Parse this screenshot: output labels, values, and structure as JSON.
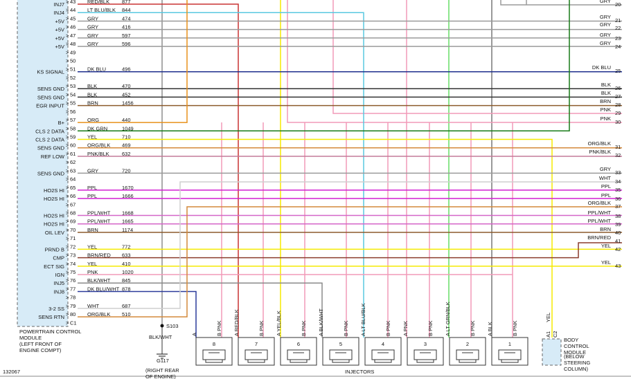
{
  "pcm": {
    "label": "POWERTRAIN CONTROL MODULE",
    "location": "(LEFT FRONT OF ENGINE COMPT)",
    "pins": [
      {
        "pin": 43,
        "wire": "RED/BLK",
        "circuit": 877,
        "function": "INJ7"
      },
      {
        "pin": 44,
        "wire": "LT BLU/BLK",
        "circuit": 844,
        "function": "INJ4"
      },
      {
        "pin": 45,
        "wire": "GRY",
        "circuit": 474,
        "function": "+5V"
      },
      {
        "pin": 46,
        "wire": "GRY",
        "circuit": 416,
        "function": "+5V"
      },
      {
        "pin": 47,
        "wire": "GRY",
        "circuit": 597,
        "function": "+5V"
      },
      {
        "pin": 48,
        "wire": "GRY",
        "circuit": 596,
        "function": "+5V"
      },
      {
        "pin": 49
      },
      {
        "pin": 50
      },
      {
        "pin": 51,
        "wire": "DK BLU",
        "circuit": 496,
        "function": "KS SIGNAL"
      },
      {
        "pin": 52
      },
      {
        "pin": 53,
        "wire": "BLK",
        "circuit": 470,
        "function": "SENS GND"
      },
      {
        "pin": 54,
        "wire": "BLK",
        "circuit": 452,
        "function": "SENS GND"
      },
      {
        "pin": 55,
        "wire": "BRN",
        "circuit": 1456,
        "function": "EGR INPUT"
      },
      {
        "pin": 56
      },
      {
        "pin": 57,
        "wire": "ORG",
        "circuit": 440,
        "function": "B+"
      },
      {
        "pin": 58,
        "wire": "DK GRN",
        "circuit": 1049,
        "function": "CLS 2 DATA"
      },
      {
        "pin": 59,
        "wire": "YEL",
        "circuit": 710,
        "function": "CLS 2 DATA"
      },
      {
        "pin": 60,
        "wire": "ORG/BLK",
        "circuit": 469,
        "function": "SENS GND"
      },
      {
        "pin": 61,
        "wire": "PNK/BLK",
        "circuit": 632,
        "function": "REF LOW"
      },
      {
        "pin": 62
      },
      {
        "pin": 63,
        "wire": "GRY",
        "circuit": 720,
        "function": "SENS GND"
      },
      {
        "pin": 64
      },
      {
        "pin": 65,
        "wire": "PPL",
        "circuit": 1670,
        "function": "HO2S HI"
      },
      {
        "pin": 66,
        "wire": "PPL",
        "circuit": 1666,
        "function": "HO2S HI"
      },
      {
        "pin": 67
      },
      {
        "pin": 68,
        "wire": "PPL/WHT",
        "circuit": 1668,
        "function": "HO2S HI"
      },
      {
        "pin": 69,
        "wire": "PPL/WHT",
        "circuit": 1665,
        "function": "HO2S HI"
      },
      {
        "pin": 70,
        "wire": "BRN",
        "circuit": 1174,
        "function": "OIL LEV"
      },
      {
        "pin": 71
      },
      {
        "pin": 72,
        "wire": "YEL",
        "circuit": 772,
        "function": "PRND B"
      },
      {
        "pin": 73,
        "wire": "BRN/RED",
        "circuit": 633,
        "function": "CMP"
      },
      {
        "pin": 74,
        "wire": "YEL",
        "circuit": 410,
        "function": "ECT SIG"
      },
      {
        "pin": 75,
        "wire": "PNK",
        "circuit": 1020,
        "function": "IGN"
      },
      {
        "pin": 76,
        "wire": "BLK/WHT",
        "circuit": 845,
        "function": "INJ5"
      },
      {
        "pin": 77,
        "wire": "DK BLU/WHT",
        "circuit": 878,
        "function": "INJ8"
      },
      {
        "pin": 78
      },
      {
        "pin": 79,
        "wire": "WHT",
        "circuit": 687,
        "function": "3-2 SS"
      },
      {
        "pin": 80,
        "wire": "ORG/BLK",
        "circuit": 510,
        "function": "SENS RTN"
      },
      {
        "pin": "C1"
      }
    ]
  },
  "right_connector": [
    {
      "wire": "GRY",
      "pin": 20
    },
    {
      "wire": "GRY",
      "pin": 21
    },
    {
      "wire": "GRY",
      "pin": 22
    },
    {
      "wire": "GRY",
      "pin": 23
    },
    {
      "wire": "GRY",
      "pin": 24
    },
    {
      "wire": "DK BLU",
      "pin": 25
    },
    {
      "wire": "BLK",
      "pin": 26
    },
    {
      "wire": "BLK",
      "pin": 27
    },
    {
      "wire": "BRN",
      "pin": 28
    },
    {
      "wire": "PNK",
      "pin": 29
    },
    {
      "wire": "PNK",
      "pin": 30
    },
    {
      "wire": "ORG/BLK",
      "pin": 31
    },
    {
      "wire": "PNK/BLK",
      "pin": 32
    },
    {
      "wire": "GRY",
      "pin": 33
    },
    {
      "wire": "WHT",
      "pin": 34
    },
    {
      "wire": "PPL",
      "pin": 35
    },
    {
      "wire": "PPL",
      "pin": 36
    },
    {
      "wire": "ORG/BLK",
      "pin": 37
    },
    {
      "wire": "PPL/WHT",
      "pin": 38
    },
    {
      "wire": "PPL/WHT",
      "pin": 39
    },
    {
      "wire": "BRN",
      "pin": 40
    },
    {
      "wire": "BRN/RED",
      "pin": 41
    },
    {
      "wire": "YEL",
      "pin": 42
    },
    {
      "wire": "YEL",
      "pin": 43
    }
  ],
  "injectors": {
    "label": "INJECTORS",
    "items": [
      {
        "number": 8,
        "a": "A",
        "b": "B PNK"
      },
      {
        "number": 7,
        "a": "A RED/BLK",
        "b": "B PNK"
      },
      {
        "number": 6,
        "a": "A YEL/BLK",
        "b": "B PNK"
      },
      {
        "number": 5,
        "a": "A BLK/WHT",
        "b": "B PNK"
      },
      {
        "number": 4,
        "a": "A LT BLU/BLK",
        "b": "B PNK"
      },
      {
        "number": 3,
        "a": "A PNK",
        "b": "B PNK"
      },
      {
        "number": 2,
        "a": "A LT GRN/BLK",
        "b": "B PNK"
      },
      {
        "number": 1,
        "a": "A BLK",
        "b": "B PNK"
      }
    ]
  },
  "bcm": {
    "pin_a": "A1",
    "wire": "YEL",
    "pin_c": "C2",
    "label": "BODY CONTROL MODULE",
    "location": "(BELOW STEERING COLUMN)"
  },
  "splice": "S103",
  "ground_wire": "BLK/WHT",
  "ground": "G117",
  "ground_location": "(RIGHT REAR OF ENGINE)",
  "figure_id": "132067"
}
